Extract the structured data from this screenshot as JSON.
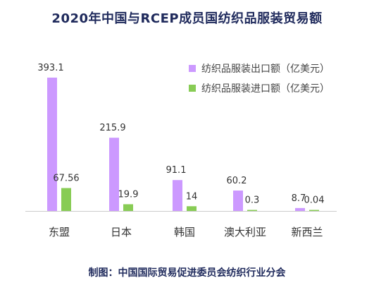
{
  "page": {
    "title": "2020年中国与RCEP成员国纺织品服装贸易额",
    "credit": "制图：中国国际贸易促进委员会纺织行业分会"
  },
  "chart_data": {
    "type": "bar",
    "title": "2020年中国与RCEP成员国纺织品服装贸易额",
    "xlabel": "",
    "ylabel": "",
    "categories": [
      "东盟",
      "日本",
      "韩国",
      "澳大利亚",
      "新西兰"
    ],
    "series": [
      {
        "name": "纺织品服装出口额（亿美元）",
        "color": "#cc99ff",
        "values": [
          393.1,
          215.9,
          91.1,
          60.2,
          8.7
        ],
        "labels": [
          "393.1",
          "215.9",
          "91.1",
          "60.2",
          "8.7"
        ]
      },
      {
        "name": "纺织品服装进口额（亿美元）",
        "color": "#88cc55",
        "values": [
          67.56,
          19.9,
          14,
          0.3,
          0.04
        ],
        "labels": [
          "67.56",
          "19.9",
          "14",
          "0.3",
          "0.04"
        ]
      }
    ],
    "ylim": [
      0,
      393.1
    ],
    "grid": false,
    "legend_position": "top-right"
  }
}
